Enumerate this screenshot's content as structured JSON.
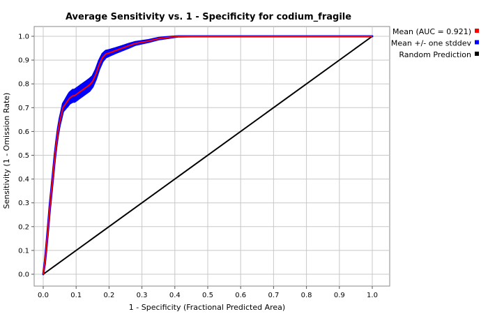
{
  "chart_data": {
    "type": "line",
    "title": "Average Sensitivity vs. 1 - Specificity for codium_fragile",
    "xlabel": "1 - Specificity (Fractional Predicted Area)",
    "ylabel": "Sensitivity (1 - Omission Rate)",
    "xlim": [
      0,
      1
    ],
    "ylim": [
      0,
      1
    ],
    "x_ticks": [
      "0.0",
      "0.1",
      "0.2",
      "0.3",
      "0.4",
      "0.5",
      "0.6",
      "0.7",
      "0.8",
      "0.9",
      "1.0"
    ],
    "y_ticks": [
      "0.0",
      "0.1",
      "0.2",
      "0.3",
      "0.4",
      "0.5",
      "0.6",
      "0.7",
      "0.8",
      "0.9",
      "1.0"
    ],
    "grid": true,
    "legend_position": "right",
    "series": [
      {
        "name": "Mean (AUC = 0.921)",
        "color": "#ff0000",
        "x": [
          0.0,
          0.005,
          0.01,
          0.015,
          0.02,
          0.025,
          0.03,
          0.035,
          0.04,
          0.045,
          0.05,
          0.055,
          0.06,
          0.065,
          0.07,
          0.075,
          0.08,
          0.085,
          0.09,
          0.095,
          0.1,
          0.11,
          0.12,
          0.13,
          0.14,
          0.15,
          0.16,
          0.17,
          0.18,
          0.19,
          0.2,
          0.22,
          0.24,
          0.26,
          0.28,
          0.3,
          0.32,
          0.35,
          0.38,
          0.41,
          0.45,
          0.5,
          0.6,
          0.7,
          0.8,
          0.9,
          1.0
        ],
        "y": [
          0.0,
          0.05,
          0.12,
          0.2,
          0.28,
          0.35,
          0.42,
          0.49,
          0.55,
          0.6,
          0.64,
          0.67,
          0.7,
          0.71,
          0.72,
          0.73,
          0.74,
          0.745,
          0.75,
          0.75,
          0.755,
          0.765,
          0.775,
          0.785,
          0.795,
          0.81,
          0.84,
          0.88,
          0.91,
          0.925,
          0.93,
          0.94,
          0.95,
          0.96,
          0.97,
          0.975,
          0.98,
          0.99,
          0.995,
          1.0,
          1.0,
          1.0,
          1.0,
          1.0,
          1.0,
          1.0,
          1.0
        ]
      },
      {
        "name": "Mean +/- one stddev",
        "color": "#0000ff",
        "std": [
          0.0,
          0.005,
          0.008,
          0.01,
          0.012,
          0.012,
          0.012,
          0.012,
          0.012,
          0.013,
          0.014,
          0.015,
          0.016,
          0.018,
          0.02,
          0.022,
          0.023,
          0.024,
          0.025,
          0.025,
          0.025,
          0.025,
          0.025,
          0.025,
          0.025,
          0.022,
          0.02,
          0.018,
          0.016,
          0.014,
          0.012,
          0.01,
          0.009,
          0.008,
          0.006,
          0.005,
          0.004,
          0.003,
          0.002,
          0.001,
          0.0,
          0.0,
          0.0,
          0.0,
          0.0,
          0.0,
          0.0
        ]
      },
      {
        "name": "Random Prediction",
        "color": "#000000",
        "x": [
          0,
          1
        ],
        "y": [
          0,
          1
        ]
      }
    ]
  }
}
